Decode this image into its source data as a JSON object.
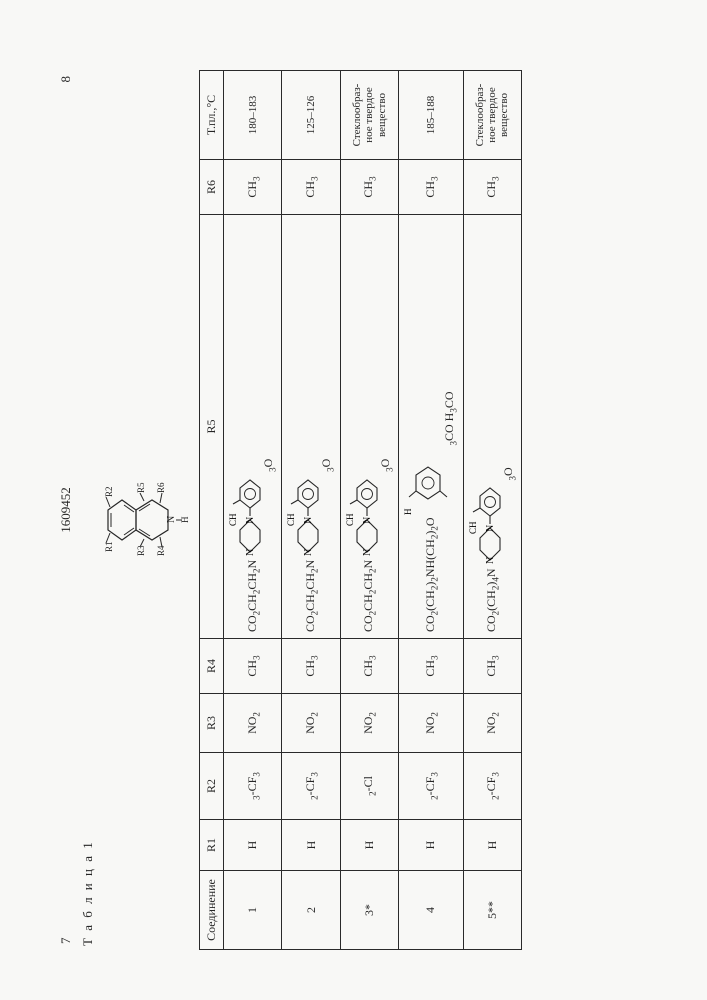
{
  "header": {
    "left_page_num": "7",
    "doc_number": "1609452",
    "right_page_num": "8",
    "table_label": "Т а б л и ц а 1"
  },
  "structure_labels": {
    "r1": "R1",
    "r2": "R2",
    "r3": "R3",
    "r4": "R4",
    "r5": "R5",
    "r6": "R6",
    "n": "N",
    "h": "H"
  },
  "columns": {
    "compound": "Соединение",
    "r1": "R1",
    "r2": "R2",
    "r3": "R3",
    "r4": "R4",
    "r5": "R5",
    "r6": "R6",
    "mp": "Т.пл.,°С"
  },
  "chem_fragments": {
    "linker_a": "CO2CH2CH2N",
    "linker_b": "CO2(CH2)2NH(CH2)2O",
    "linker_c": "CO2(CH2)4N",
    "ch3o": "CH3O",
    "h3co_upper": "H3CO",
    "h3co_lower": "H3CO"
  },
  "rows": [
    {
      "id": "1",
      "r1": "H",
      "r2": "3-CF3",
      "r3": "NO2",
      "r4": "CH3",
      "r5_type": "piperazinyl",
      "r5_linker": "linker_a",
      "r5_subst": "ch3o",
      "r6": "CH3",
      "mp": "180–183"
    },
    {
      "id": "2",
      "r1": "H",
      "r2": "2-CF3",
      "r3": "NO2",
      "r4": "CH3",
      "r5_type": "piperazinyl",
      "r5_linker": "linker_a",
      "r5_subst": "ch3o",
      "r6": "CH3",
      "mp": "125–126"
    },
    {
      "id": "3*",
      "r1": "H",
      "r2": "2-Cl",
      "r3": "NO2",
      "r4": "CH3",
      "r5_type": "piperazinyl",
      "r5_linker": "linker_a",
      "r5_subst": "ch3o",
      "r6": "CH3",
      "mp": "Стеклообраз-\nное твердое\nвещество"
    },
    {
      "id": "4",
      "r1": "H",
      "r2": "2-CF3",
      "r3": "NO2",
      "r4": "CH3",
      "r5_type": "dimethoxyphenyl",
      "r5_linker": "linker_b",
      "r6": "CH3",
      "mp": "185–188"
    },
    {
      "id": "5**",
      "r1": "H",
      "r2": "2-CF3",
      "r3": "NO2",
      "r4": "CH3",
      "r5_type": "piperazinyl",
      "r5_linker": "linker_c",
      "r5_subst": "ch3o",
      "r6": "CH3",
      "mp": "Стеклообраз-\nное твердое\nвещество"
    }
  ],
  "colors": {
    "text": "#262626",
    "rule": "#2a2a2a",
    "background": "#f8f8f6"
  }
}
